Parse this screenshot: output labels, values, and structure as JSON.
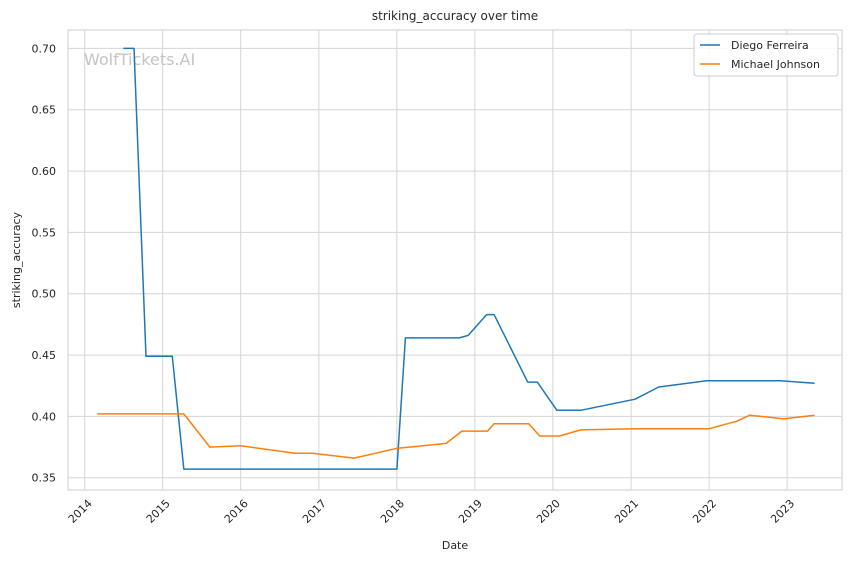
{
  "watermark": "WolfTickets.AI",
  "chart_data": {
    "type": "line",
    "title": "striking_accuracy over time",
    "xlabel": "Date",
    "ylabel": "striking_accuracy",
    "xlim": [
      "2013-10-15",
      "2023-09-15"
    ],
    "ylim": [
      0.34,
      0.715
    ],
    "x_ticks": [
      "2014",
      "2015",
      "2016",
      "2017",
      "2018",
      "2019",
      "2020",
      "2021",
      "2022",
      "2023"
    ],
    "y_ticks": [
      "0.35",
      "0.40",
      "0.45",
      "0.50",
      "0.55",
      "0.60",
      "0.65",
      "0.70"
    ],
    "grid": true,
    "legend_position": "top-right",
    "series": [
      {
        "name": "Diego Ferreira",
        "color": "#1f77b4",
        "points": [
          [
            "2014-07-01",
            0.7
          ],
          [
            "2014-08-20",
            0.7
          ],
          [
            "2014-10-15",
            0.449
          ],
          [
            "2015-02-15",
            0.449
          ],
          [
            "2015-04-10",
            0.357
          ],
          [
            "2016-01-01",
            0.357
          ],
          [
            "2018-01-01",
            0.357
          ],
          [
            "2018-02-10",
            0.464
          ],
          [
            "2018-10-20",
            0.464
          ],
          [
            "2018-12-01",
            0.466
          ],
          [
            "2019-02-25",
            0.483
          ],
          [
            "2019-04-01",
            0.483
          ],
          [
            "2019-09-05",
            0.428
          ],
          [
            "2019-10-20",
            0.428
          ],
          [
            "2020-01-20",
            0.405
          ],
          [
            "2020-05-10",
            0.405
          ],
          [
            "2021-01-20",
            0.414
          ],
          [
            "2021-05-10",
            0.424
          ],
          [
            "2021-12-20",
            0.429
          ],
          [
            "2022-12-01",
            0.429
          ],
          [
            "2023-05-10",
            0.427
          ]
        ]
      },
      {
        "name": "Michael Johnson",
        "color": "#ff7f0e",
        "points": [
          [
            "2014-03-01",
            0.402
          ],
          [
            "2015-04-10",
            0.402
          ],
          [
            "2015-08-10",
            0.375
          ],
          [
            "2016-01-01",
            0.376
          ],
          [
            "2016-09-10",
            0.37
          ],
          [
            "2016-12-01",
            0.37
          ],
          [
            "2017-06-15",
            0.366
          ],
          [
            "2018-01-01",
            0.374
          ],
          [
            "2018-03-01",
            0.375
          ],
          [
            "2018-08-20",
            0.378
          ],
          [
            "2018-11-01",
            0.388
          ],
          [
            "2019-03-01",
            0.388
          ],
          [
            "2019-04-01",
            0.394
          ],
          [
            "2019-09-10",
            0.394
          ],
          [
            "2019-11-01",
            0.384
          ],
          [
            "2020-02-01",
            0.384
          ],
          [
            "2020-05-10",
            0.389
          ],
          [
            "2021-01-20",
            0.39
          ],
          [
            "2021-05-10",
            0.39
          ],
          [
            "2022-01-01",
            0.39
          ],
          [
            "2022-05-10",
            0.396
          ],
          [
            "2022-07-10",
            0.401
          ],
          [
            "2022-12-15",
            0.398
          ],
          [
            "2023-05-10",
            0.401
          ]
        ]
      }
    ]
  }
}
